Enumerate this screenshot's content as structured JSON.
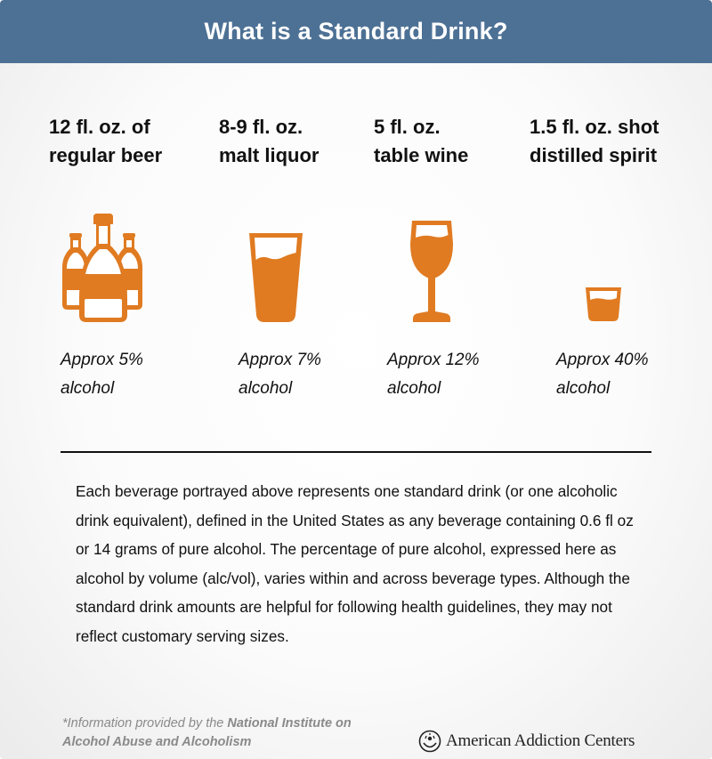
{
  "header": {
    "title": "What is a Standard Drink?"
  },
  "colors": {
    "header": "#4d7195",
    "accent": "#e07b22",
    "liquid_light": "#ffffff"
  },
  "drinks": [
    {
      "name": "12 fl. oz. of\nregular beer",
      "icon": "beer-bottles-icon",
      "abv": "Approx 5%\nalcohol"
    },
    {
      "name": "8-9 fl. oz.\nmalt liquor",
      "icon": "pint-glass-icon",
      "abv": "Approx 7%\nalcohol"
    },
    {
      "name": "5 fl. oz.\ntable wine",
      "icon": "wine-glass-icon",
      "abv": "Approx 12%\nalcohol"
    },
    {
      "name": "1.5 fl. oz. shot\ndistilled spirit",
      "icon": "shot-glass-icon",
      "abv": "Approx 40%\nalcohol"
    }
  ],
  "note": "Each beverage portrayed above represents one standard drink (or one alcoholic drink equivalent), defined in the United States as any beverage containing 0.6 fl oz or 14 grams of pure alcohol. The percentage of pure alcohol, expressed here as alcohol by volume (alc/vol), varies within and across beverage types. Although the standard drink amounts are helpful for following health guidelines, they may not reflect customary serving sizes.",
  "source": {
    "prefix": "*Information provided by the ",
    "org": "National Institute on Alcohol Abuse and Alcoholism"
  },
  "brand": {
    "name": "American Addiction Centers",
    "icon": "aac-logo-icon"
  }
}
